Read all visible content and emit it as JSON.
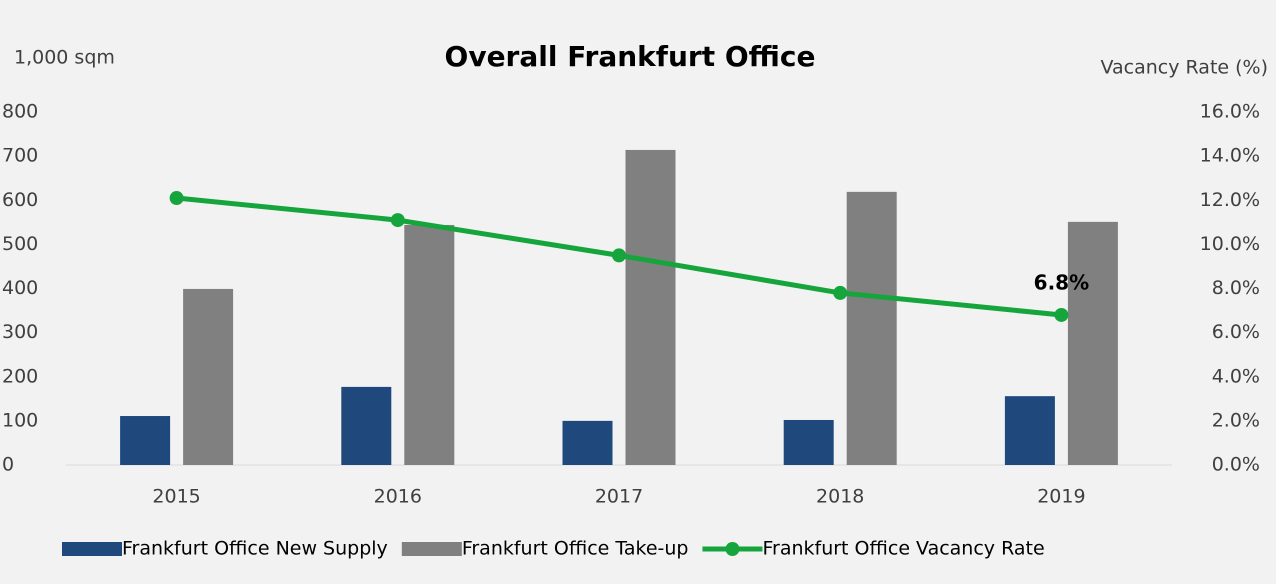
{
  "chart_data": {
    "type": "bar",
    "title": "Overall Frankfurt Office",
    "y_label": "1,000 sqm",
    "y2_label": "Vacancy Rate (%)",
    "categories": [
      "2015",
      "2016",
      "2017",
      "2018",
      "2019"
    ],
    "series": [
      {
        "name": "Frankfurt Office New Supply",
        "type": "bar",
        "color": "#1f497d",
        "values": [
          111,
          177,
          100,
          102,
          156
        ]
      },
      {
        "name": "Frankfurt Office Take-up",
        "type": "bar",
        "color": "#808080",
        "values": [
          399,
          544,
          714,
          619,
          551
        ]
      },
      {
        "name": "Frankfurt Office Vacancy Rate",
        "type": "line",
        "axis": "y2",
        "color": "#16a53c",
        "values": [
          12.1,
          11.1,
          9.5,
          7.8,
          6.8
        ],
        "value_labels": [
          null,
          null,
          null,
          null,
          "6.8%"
        ]
      }
    ],
    "ylim": [
      0,
      800
    ],
    "yticks": [
      0,
      100,
      200,
      300,
      400,
      500,
      600,
      700,
      800
    ],
    "y2lim": [
      0,
      16
    ],
    "y2ticks": [
      {
        "value": 0,
        "label": "0.0%"
      },
      {
        "value": 2,
        "label": "2.0%"
      },
      {
        "value": 4,
        "label": "4.0%"
      },
      {
        "value": 6,
        "label": "6.0%"
      },
      {
        "value": 8,
        "label": "8.0%"
      },
      {
        "value": 10,
        "label": "10.0%"
      },
      {
        "value": 12,
        "label": "12.0%"
      },
      {
        "value": 14,
        "label": "14.0%"
      },
      {
        "value": 16,
        "label": "16.0%"
      }
    ],
    "grid": false,
    "legend": "bottom"
  }
}
